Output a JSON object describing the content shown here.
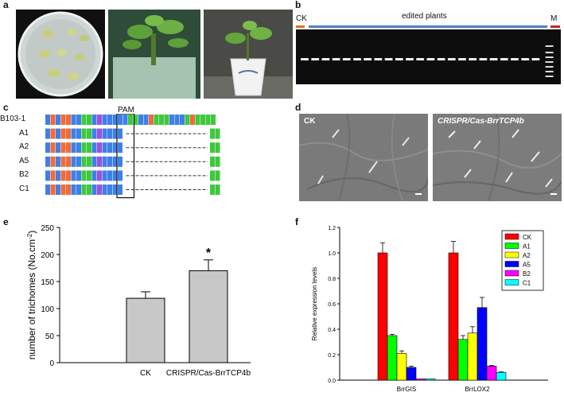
{
  "panels": {
    "a": {
      "letter": "a"
    },
    "b": {
      "letter": "b",
      "ck_label": "CK",
      "edited_label": "edited  plants",
      "marker_label": "M",
      "ck_color": "#e07020",
      "edited_color": "#4f7fc8",
      "marker_color": "#d02020",
      "lane_count": 23
    },
    "c": {
      "letter": "c",
      "pam_label": "PAM",
      "rows": [
        {
          "label": "B103-1",
          "deletion": false
        },
        {
          "label": "A1",
          "deletion": true
        },
        {
          "label": "A2",
          "deletion": true
        },
        {
          "label": "A5",
          "deletion": true
        },
        {
          "label": "B2",
          "deletion": true
        },
        {
          "label": "C1",
          "deletion": true
        }
      ],
      "base_colors": {
        "A": "#3ec83e",
        "C": "#3f7fe8",
        "G": "#a04fe0",
        "T": "#f06a3a"
      }
    },
    "d": {
      "letter": "d",
      "left_label": "CK",
      "right_label": "CRISPR/Cas-BrrTCP4b"
    },
    "e": {
      "letter": "e"
    },
    "f": {
      "letter": "f"
    }
  },
  "chart_data": [
    {
      "type": "bar",
      "panel": "e",
      "categories": [
        "CK",
        "CRISPR/Cas-BrrTCP4b"
      ],
      "values": [
        119,
        170
      ],
      "errors": [
        12,
        20
      ],
      "significance": [
        "",
        "*"
      ],
      "ylabel": "number of trichomes (No.cm-2)",
      "ylabel_main": "number of trichomes (No.cm",
      "ylabel_sup": "-2",
      "ylabel_close": ")",
      "ylim": [
        0,
        250
      ],
      "yticks": [
        0,
        50,
        100,
        150,
        200,
        250
      ],
      "bar_color": "#c8c8c8"
    },
    {
      "type": "bar",
      "panel": "f",
      "categories": [
        "BrrGIS",
        "BrrLOX2"
      ],
      "series": [
        {
          "name": "CK",
          "color": "#ff0000",
          "values": [
            1.0,
            1.0
          ],
          "errors": [
            0.08,
            0.09
          ]
        },
        {
          "name": "A1",
          "color": "#00ff00",
          "values": [
            0.35,
            0.32
          ],
          "errors": [
            0.01,
            0.03
          ]
        },
        {
          "name": "A2",
          "color": "#ffff00",
          "values": [
            0.21,
            0.37
          ],
          "errors": [
            0.02,
            0.05
          ]
        },
        {
          "name": "A5",
          "color": "#0000ff",
          "values": [
            0.1,
            0.57
          ],
          "errors": [
            0.01,
            0.08
          ]
        },
        {
          "name": "B2",
          "color": "#ff00ff",
          "values": [
            0.01,
            0.11
          ],
          "errors": [
            0.0,
            0.005
          ]
        },
        {
          "name": "C1",
          "color": "#00ffff",
          "values": [
            0.01,
            0.06
          ],
          "errors": [
            0.0,
            0.005
          ]
        }
      ],
      "ylabel": "Relative expression levels",
      "ylim": [
        0,
        1.2
      ],
      "yticks": [
        "0.0",
        "0.2",
        "0.4",
        "0.6",
        "0.8",
        "1.0",
        "1.2"
      ],
      "legend_position": "top-right"
    }
  ]
}
